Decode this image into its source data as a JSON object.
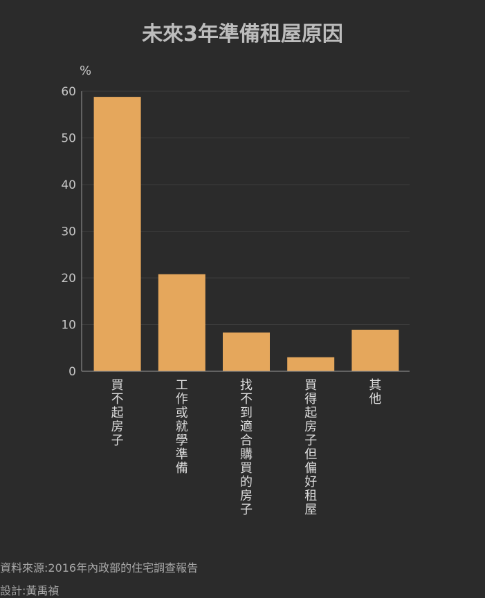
{
  "chart_data": {
    "type": "bar",
    "title": "未來3年準備租屋原因",
    "ylabel": "%",
    "xlabel": "",
    "ylim": [
      0,
      60
    ],
    "yticks": [
      0,
      10,
      20,
      30,
      40,
      50,
      60
    ],
    "grid": true,
    "categories": [
      "買不起房子",
      "工作或就學準備",
      "找不到適合購買的房子",
      "買得起房子但偏好租屋",
      "其他"
    ],
    "values": [
      58.8,
      20.8,
      8.3,
      3.0,
      8.9
    ],
    "bar_color": "#e5a75c"
  },
  "footer": {
    "source": "資料來源:2016年內政部的住宅調查報告",
    "designer": "設計:黃禹禎"
  }
}
